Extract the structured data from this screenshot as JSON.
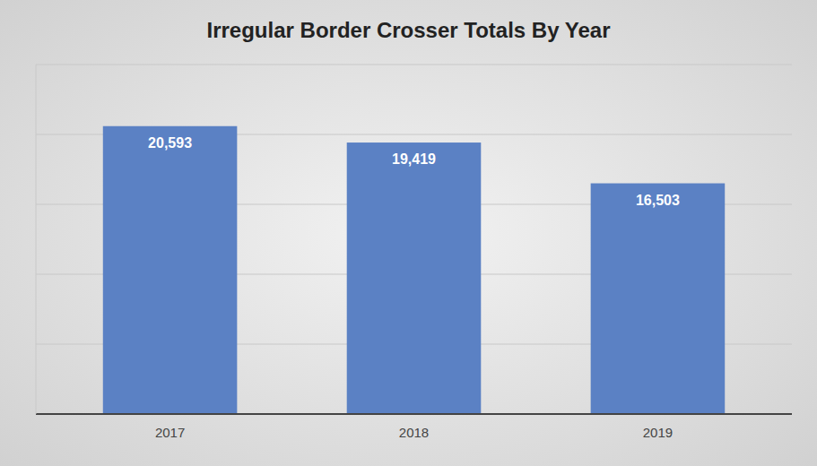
{
  "chart_data": {
    "type": "bar",
    "title": "Irregular Border Crosser Totals By Year",
    "categories": [
      "2017",
      "2018",
      "2019"
    ],
    "values": [
      20593,
      19419,
      16503
    ],
    "value_labels": [
      "20,593",
      "19,419",
      "16,503"
    ],
    "color": "#5B81C4",
    "ylim": [
      0,
      25000
    ],
    "yticks": [
      0,
      5000,
      10000,
      15000,
      20000,
      25000
    ],
    "grid": true,
    "data_labels": true,
    "tick_labels": "x"
  }
}
